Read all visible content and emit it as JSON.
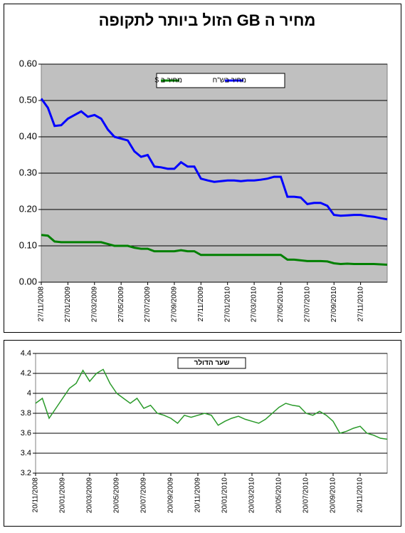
{
  "chart_data": [
    {
      "type": "line",
      "title": "מחיר ה GB הזול ביותר לתקופה",
      "categories": [
        "27/11/2008",
        null,
        null,
        null,
        "27/01/2009",
        null,
        null,
        null,
        "27/03/2009",
        null,
        null,
        null,
        "27/05/2009",
        null,
        null,
        null,
        "27/07/2009",
        null,
        null,
        null,
        "27/09/2009",
        null,
        null,
        null,
        "27/11/2009",
        null,
        null,
        null,
        "27/01/2010",
        null,
        null,
        null,
        "27/03/2010",
        null,
        null,
        null,
        "27/05/2010",
        null,
        null,
        null,
        "27/07/2010",
        null,
        null,
        null,
        "27/09/2010",
        null,
        null,
        null,
        "27/11/2010",
        null,
        null,
        null,
        null
      ],
      "series": [
        {
          "name": "מחיר ב $",
          "color": "#008000",
          "values": [
            0.13,
            0.128,
            0.112,
            0.11,
            0.11,
            0.11,
            0.11,
            0.11,
            0.11,
            0.11,
            0.105,
            0.1,
            0.1,
            0.1,
            0.095,
            0.092,
            0.092,
            0.085,
            0.085,
            0.085,
            0.085,
            0.088,
            0.085,
            0.085,
            0.075,
            0.075,
            0.075,
            0.075,
            0.075,
            0.075,
            0.075,
            0.075,
            0.075,
            0.075,
            0.075,
            0.075,
            0.075,
            0.062,
            0.062,
            0.06,
            0.058,
            0.058,
            0.058,
            0.057,
            0.052,
            0.05,
            0.051,
            0.05,
            0.05,
            0.05,
            0.05,
            0.049,
            0.048
          ]
        },
        {
          "name": "מחיר בש\"ח",
          "color": "#0000ff",
          "values": [
            0.505,
            0.48,
            0.43,
            0.432,
            0.45,
            0.46,
            0.47,
            0.455,
            0.46,
            0.45,
            0.42,
            0.4,
            0.395,
            0.39,
            0.36,
            0.345,
            0.35,
            0.318,
            0.316,
            0.312,
            0.312,
            0.33,
            0.318,
            0.318,
            0.285,
            0.28,
            0.276,
            0.278,
            0.28,
            0.28,
            0.278,
            0.28,
            0.28,
            0.282,
            0.285,
            0.29,
            0.29,
            0.235,
            0.235,
            0.233,
            0.215,
            0.218,
            0.218,
            0.21,
            0.185,
            0.183,
            0.184,
            0.185,
            0.185,
            0.182,
            0.18,
            0.176,
            0.173
          ]
        }
      ],
      "ylim": [
        0,
        0.6
      ],
      "yticks": [
        {
          "value": 0,
          "label": "0.00"
        },
        {
          "value": 0.1,
          "label": "0.10"
        },
        {
          "value": 0.2,
          "label": "0.20"
        },
        {
          "value": 0.3,
          "label": "0.30"
        },
        {
          "value": 0.4,
          "label": "0.40"
        },
        {
          "value": 0.5,
          "label": "0.50"
        },
        {
          "value": 0.6,
          "label": "0.60"
        }
      ],
      "grid": true,
      "background": "#c0c0c0",
      "legend": "top"
    },
    {
      "type": "line",
      "categories": [
        "20/11/2008",
        null,
        null,
        null,
        "20/01/2009",
        null,
        null,
        null,
        "20/03/2009",
        null,
        null,
        null,
        "20/05/2009",
        null,
        null,
        null,
        "20/07/2009",
        null,
        null,
        null,
        "20/09/2009",
        null,
        null,
        null,
        "20/11/2009",
        null,
        null,
        null,
        "20/01/2010",
        null,
        null,
        null,
        "20/03/2010",
        null,
        null,
        null,
        "20/05/2010",
        null,
        null,
        null,
        "20/07/2010",
        null,
        null,
        null,
        "20/09/2010",
        null,
        null,
        null,
        "20/11/2010",
        null,
        null,
        null,
        null
      ],
      "series": [
        {
          "name": "שער הדולר",
          "color": "#2a9a2a",
          "values": [
            3.9,
            3.95,
            3.75,
            3.85,
            3.95,
            4.05,
            4.1,
            4.23,
            4.12,
            4.2,
            4.24,
            4.1,
            4.0,
            3.95,
            3.9,
            3.95,
            3.85,
            3.88,
            3.8,
            3.78,
            3.75,
            3.7,
            3.78,
            3.76,
            3.78,
            3.8,
            3.78,
            3.68,
            3.72,
            3.75,
            3.77,
            3.74,
            3.72,
            3.7,
            3.74,
            3.8,
            3.86,
            3.9,
            3.88,
            3.87,
            3.8,
            3.78,
            3.82,
            3.78,
            3.72,
            3.6,
            3.62,
            3.65,
            3.67,
            3.6,
            3.58,
            3.55,
            3.54
          ]
        }
      ],
      "ylim": [
        3.2,
        4.4
      ],
      "yticks": [
        3.2,
        3.4,
        3.6,
        3.8,
        4,
        4.2,
        4.4
      ],
      "grid": true,
      "background": "#ffffff",
      "legend": "top"
    }
  ]
}
